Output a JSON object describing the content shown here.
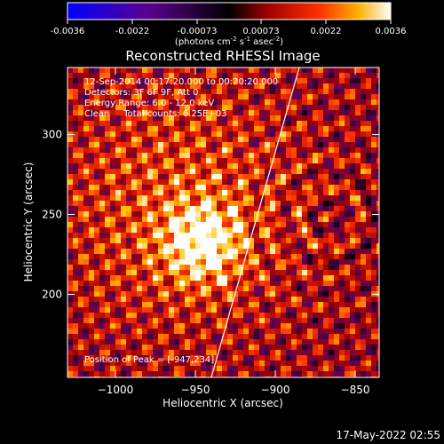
{
  "colorbar": {
    "ticks": [
      "-0.0036",
      "-0.0022",
      "-0.00073",
      "0.00073",
      "0.0022",
      "0.0036"
    ],
    "units_prefix": "(photons cm",
    "units_exp1": "-2",
    "units_mid": " s",
    "units_exp2": "-1",
    "units_suffix": " asec",
    "units_exp3": "-2",
    "units_close": ")"
  },
  "chart_data": {
    "type": "heatmap",
    "title": "Reconstructed RHESSI Image",
    "xlabel": "Heliocentric X (arcsec)",
    "ylabel": "Heliocentric Y (arcsec)",
    "xlim": [
      -1030,
      -835
    ],
    "ylim": [
      148,
      342
    ],
    "x_ticks": [
      -1000,
      -950,
      -900,
      -850
    ],
    "y_ticks": [
      200,
      250,
      300
    ],
    "x_tick_labels": [
      "−1000",
      "−950",
      "−900",
      "−850"
    ],
    "y_tick_labels": [
      "200",
      "250",
      "300"
    ],
    "value_range": [
      -0.0036,
      0.0036
    ],
    "peak": {
      "x": -947,
      "y": 234
    },
    "limb_line": {
      "x_start": -940,
      "y_start": 148,
      "x_end": -885,
      "y_end": 342
    },
    "annotations": [
      "12-Sep-2014 00:17:20.000 to 00:20:20.000",
      "Detectors: 3F 6F 9F, Att 0",
      "Energy Range: 6.0 - 12.0 keV",
      "Clean     Total counts: 6.25E+03",
      "Position of Peak = [-947,234]"
    ]
  },
  "footer": {
    "timestamp": "17-May-2022 02:55"
  }
}
